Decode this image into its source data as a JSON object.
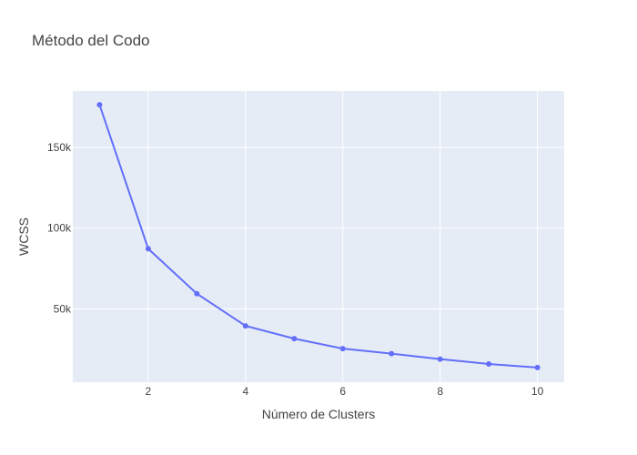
{
  "chart_data": {
    "type": "line",
    "title": "Método del Codo",
    "xlabel": "Número de Clusters",
    "ylabel": "WCSS",
    "x": [
      1,
      2,
      3,
      4,
      5,
      6,
      7,
      8,
      9,
      10
    ],
    "series": [
      {
        "values": [
          176500,
          87200,
          59400,
          39400,
          31500,
          25300,
          22200,
          18800,
          15800,
          13600
        ]
      }
    ],
    "xlim": [
      0.45,
      10.55
    ],
    "ylim": [
      4500,
      185000
    ],
    "xticks": [
      2,
      4,
      6,
      8,
      10
    ],
    "xtick_labels": [
      "2",
      "4",
      "6",
      "8",
      "10"
    ],
    "yticks": [
      50000,
      100000,
      150000
    ],
    "ytick_labels": [
      "50k",
      "100k",
      "150k"
    ],
    "grid": true,
    "legend": false,
    "colors": {
      "line": "#636efa",
      "plot_bg": "#e5ecf6",
      "grid": "#ffffff",
      "text": "#444444"
    }
  }
}
